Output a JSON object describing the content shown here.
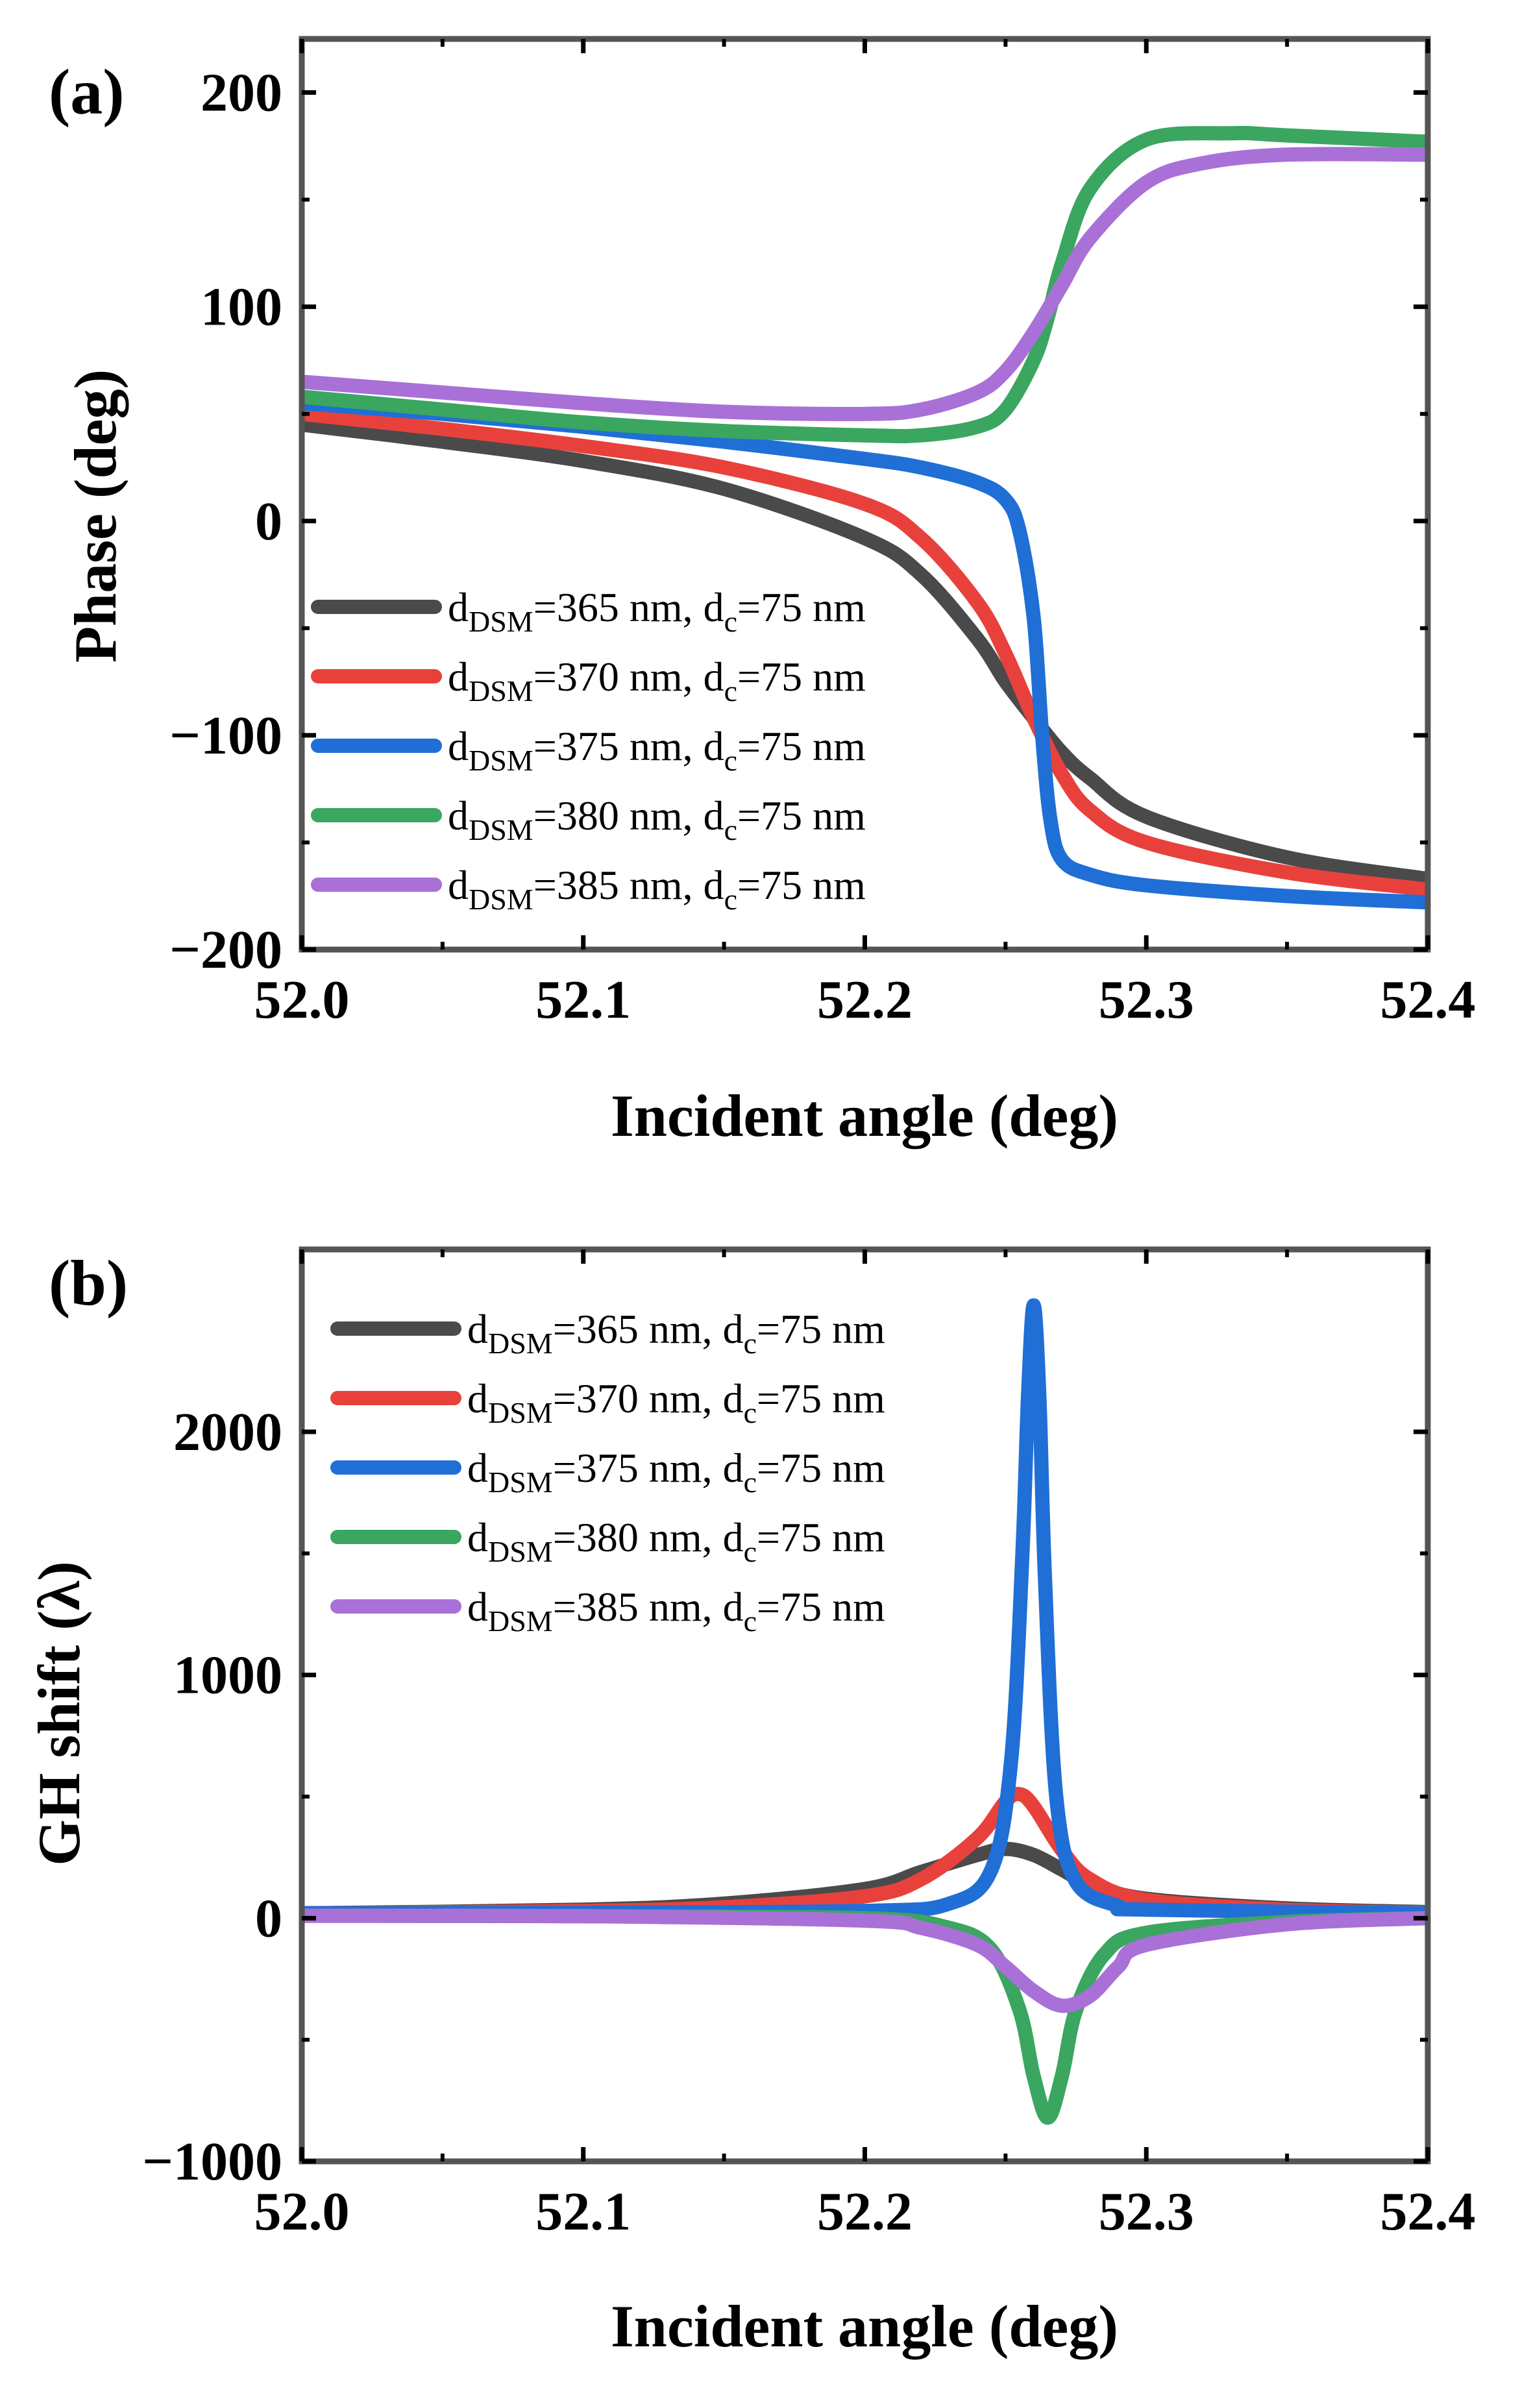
{
  "chart_data": [
    {
      "type": "line",
      "panel_label": "(a)",
      "xlabel": "Incident angle (deg)",
      "ylabel": "Phase (deg)",
      "xlim": [
        52.0,
        52.4
      ],
      "ylim": [
        -200,
        225
      ],
      "x_ticks": [
        52.0,
        52.1,
        52.2,
        52.3,
        52.4
      ],
      "x_tick_labels": [
        "52.0",
        "52.1",
        "52.2",
        "52.3",
        "52.4"
      ],
      "y_ticks": [
        -200,
        -100,
        0,
        100,
        200
      ],
      "y_tick_labels": [
        "−200",
        "−100",
        "0",
        "100",
        "200"
      ],
      "legend_position": "lower-left",
      "series": [
        {
          "name": "d_DSM=365 nm, d_c=75 nm",
          "legend": {
            "base": "d",
            "sub1": "DSM",
            "mid": "=365 nm, d",
            "sub2": "c",
            "tail": "=75 nm"
          },
          "color": "#4a4a4a",
          "x": [
            52.0,
            52.05,
            52.1,
            52.15,
            52.2,
            52.22,
            52.24,
            52.25,
            52.26,
            52.27,
            52.28,
            52.3,
            52.35,
            52.4
          ],
          "y": [
            45,
            37,
            28,
            15,
            -8,
            -25,
            -55,
            -75,
            -92,
            -108,
            -120,
            -138,
            -157,
            -167
          ]
        },
        {
          "name": "d_DSM=370 nm, d_c=75 nm",
          "legend": {
            "base": "d",
            "sub1": "DSM",
            "mid": "=370 nm, d",
            "sub2": "c",
            "tail": "=75 nm"
          },
          "color": "#e8413c",
          "x": [
            52.0,
            52.05,
            52.1,
            52.15,
            52.2,
            52.22,
            52.24,
            52.25,
            52.26,
            52.27,
            52.28,
            52.3,
            52.35,
            52.4
          ],
          "y": [
            50,
            43,
            35,
            25,
            8,
            -8,
            -38,
            -62,
            -92,
            -118,
            -135,
            -150,
            -164,
            -172
          ]
        },
        {
          "name": "d_DSM=375 nm, d_c=75 nm",
          "legend": {
            "base": "d",
            "sub1": "DSM",
            "mid": "=375 nm, d",
            "sub2": "c",
            "tail": "=75 nm"
          },
          "color": "#1f6fd6",
          "x": [
            52.0,
            52.05,
            52.1,
            52.15,
            52.2,
            52.22,
            52.24,
            52.25,
            52.255,
            52.26,
            52.263,
            52.266,
            52.27,
            52.28,
            52.3,
            52.35,
            52.4
          ],
          "y": [
            55,
            50,
            44,
            37,
            29,
            25,
            18,
            10,
            -5,
            -45,
            -100,
            -140,
            -158,
            -165,
            -170,
            -175,
            -178
          ]
        },
        {
          "name": "d_DSM=380 nm, d_c=75 nm",
          "legend": {
            "base": "d",
            "sub1": "DSM",
            "mid": "=380 nm, d",
            "sub2": "c",
            "tail": "=75 nm"
          },
          "color": "#3aa660",
          "x": [
            52.0,
            52.05,
            52.1,
            52.15,
            52.2,
            52.22,
            52.24,
            52.25,
            52.26,
            52.265,
            52.27,
            52.28,
            52.3,
            52.33,
            52.35,
            52.4
          ],
          "y": [
            58,
            52,
            46,
            42,
            40,
            40,
            44,
            52,
            75,
            95,
            120,
            155,
            178,
            181,
            180,
            177
          ]
        },
        {
          "name": "d_DSM=385 nm, d_c=75 nm",
          "legend": {
            "base": "d",
            "sub1": "DSM",
            "mid": "=385 nm, d",
            "sub2": "c",
            "tail": "=75 nm"
          },
          "color": "#a970d8",
          "x": [
            52.0,
            52.05,
            52.1,
            52.15,
            52.2,
            52.22,
            52.24,
            52.25,
            52.26,
            52.27,
            52.28,
            52.3,
            52.32,
            52.35,
            52.4
          ],
          "y": [
            65,
            60,
            55,
            51,
            50,
            52,
            60,
            70,
            88,
            110,
            132,
            158,
            167,
            171,
            171
          ]
        }
      ]
    },
    {
      "type": "line",
      "panel_label": "(b)",
      "xlabel": "Incident angle (deg)",
      "ylabel": "GH shift (λ)",
      "xlim": [
        52.0,
        52.4
      ],
      "ylim": [
        -1000,
        2750
      ],
      "x_ticks": [
        52.0,
        52.1,
        52.2,
        52.3,
        52.4
      ],
      "x_tick_labels": [
        "52.0",
        "52.1",
        "52.2",
        "52.3",
        "52.4"
      ],
      "y_ticks": [
        -1000,
        0,
        1000,
        2000
      ],
      "y_tick_labels": [
        "−1000",
        "0",
        "1000",
        "2000"
      ],
      "legend_position": "upper-left",
      "series": [
        {
          "name": "d_DSM=365 nm, d_c=75 nm",
          "legend": {
            "base": "d",
            "sub1": "DSM",
            "mid": "=365 nm, d",
            "sub2": "c",
            "tail": "=75 nm"
          },
          "color": "#4a4a4a",
          "x": [
            52.0,
            52.1,
            52.15,
            52.2,
            52.22,
            52.24,
            52.25,
            52.26,
            52.27,
            52.28,
            52.3,
            52.35,
            52.4
          ],
          "y": [
            20,
            35,
            60,
            120,
            190,
            260,
            285,
            260,
            200,
            140,
            80,
            40,
            25
          ]
        },
        {
          "name": "d_DSM=370 nm, d_c=75 nm",
          "legend": {
            "base": "d",
            "sub1": "DSM",
            "mid": "=370 nm, d",
            "sub2": "c",
            "tail": "=75 nm"
          },
          "color": "#e8413c",
          "x": [
            52.0,
            52.1,
            52.15,
            52.2,
            52.22,
            52.24,
            52.25,
            52.255,
            52.26,
            52.27,
            52.28,
            52.3,
            52.35,
            52.4
          ],
          "y": [
            20,
            30,
            45,
            90,
            160,
            330,
            480,
            510,
            460,
            280,
            160,
            75,
            35,
            22
          ]
        },
        {
          "name": "d_DSM=375 nm, d_c=75 nm",
          "legend": {
            "base": "d",
            "sub1": "DSM",
            "mid": "=375 nm, d",
            "sub2": "c",
            "tail": "=75 nm"
          },
          "color": "#1f6fd6",
          "x": [
            52.0,
            52.1,
            52.2,
            52.23,
            52.245,
            52.252,
            52.256,
            52.258,
            52.26,
            52.262,
            52.264,
            52.268,
            52.275,
            52.29,
            52.3,
            52.4
          ],
          "y": [
            20,
            22,
            30,
            60,
            200,
            650,
            1500,
            2150,
            2520,
            2150,
            1400,
            500,
            150,
            50,
            35,
            20
          ]
        },
        {
          "name": "d_DSM=380 nm, d_c=75 nm",
          "legend": {
            "base": "d",
            "sub1": "DSM",
            "mid": "=380 nm, d",
            "sub2": "c",
            "tail": "=75 nm"
          },
          "color": "#3aa660",
          "x": [
            52.0,
            52.1,
            52.2,
            52.23,
            52.245,
            52.255,
            52.26,
            52.265,
            52.27,
            52.275,
            52.285,
            52.3,
            52.35,
            52.4
          ],
          "y": [
            10,
            8,
            0,
            -40,
            -130,
            -380,
            -650,
            -820,
            -650,
            -380,
            -150,
            -60,
            -15,
            0
          ]
        },
        {
          "name": "d_DSM=385 nm, d_c=75 nm",
          "legend": {
            "base": "d",
            "sub1": "DSM",
            "mid": "=385 nm, d",
            "sub2": "c",
            "tail": "=75 nm"
          },
          "color": "#a970d8",
          "x": [
            52.0,
            52.1,
            52.2,
            52.22,
            52.24,
            52.25,
            52.26,
            52.27,
            52.28,
            52.29,
            52.3,
            52.35,
            52.4
          ],
          "y": [
            10,
            8,
            -10,
            -40,
            -110,
            -200,
            -300,
            -360,
            -320,
            -200,
            -110,
            -25,
            0
          ]
        }
      ]
    }
  ]
}
